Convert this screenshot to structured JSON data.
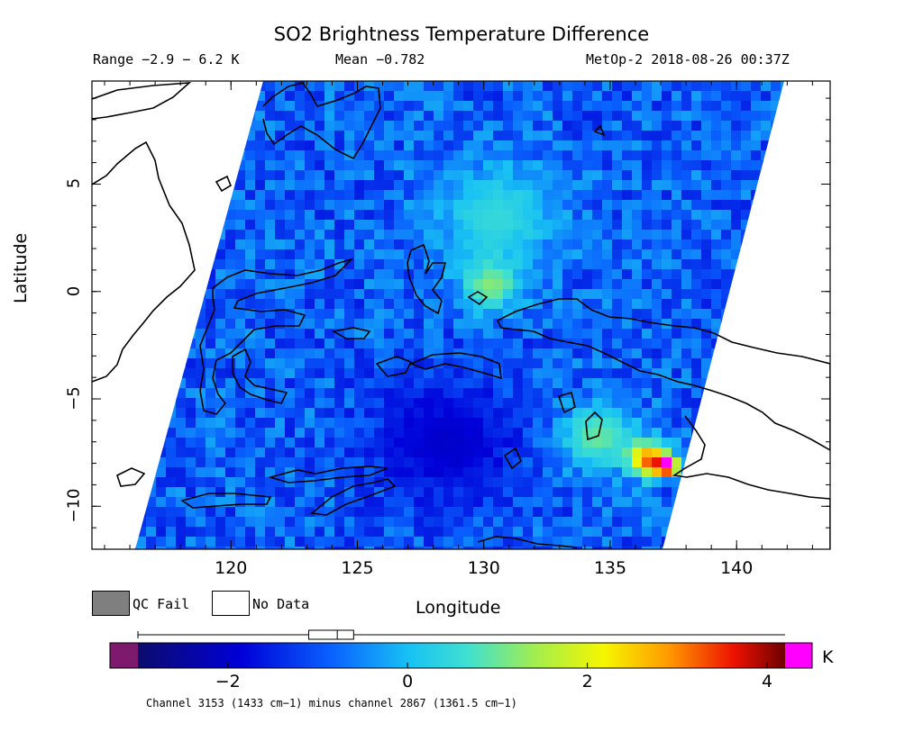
{
  "title": "SO2 Brightness Temperature Difference",
  "range_text": "Range −2.9 − 6.2 K",
  "mean_text": "Mean −0.782",
  "satellite_text": "MetOp-2 2018-08-26 00:37Z",
  "axes": {
    "xlabel": "Longitude",
    "ylabel": "Latitude",
    "lon_range": [
      114.5,
      143.7
    ],
    "lat_range": [
      -12,
      9.8
    ],
    "lon_ticks": [
      "120",
      "125",
      "130",
      "135",
      "140"
    ],
    "lat_ticks": [
      "5",
      "0",
      "−5",
      "−10"
    ]
  },
  "legend": {
    "qc_fail": "QC Fail",
    "no_data": "No Data",
    "qc_color": "#7f7f7f",
    "nodata_color": "#ffffff"
  },
  "colorbar": {
    "label": "Channel 3153 (1433 cm−1) minus channel 2867 (1361.5 cm−1)",
    "unit": "K",
    "ticks": [
      "−2",
      "0",
      "2",
      "4"
    ],
    "range": [
      -3,
      4.2
    ],
    "under_color": "#7d1a6e",
    "over_color": "#ff00ff",
    "mean_value": -0.782,
    "box_range": [
      -1.1,
      -0.6
    ]
  },
  "swath": {
    "background_value": -0.9,
    "hotspots": [
      {
        "lon": 130.5,
        "lat": 3.5,
        "value": 0.5,
        "radius": 2.5
      },
      {
        "lon": 130.3,
        "lat": 0.3,
        "value": 1.2,
        "radius": 1.2
      },
      {
        "lon": 128.5,
        "lat": -7,
        "value": -2.0,
        "radius": 3.0
      },
      {
        "lon": 134.5,
        "lat": -6.8,
        "value": 1.0,
        "radius": 1.5
      },
      {
        "lon": 136.5,
        "lat": -7.8,
        "value": 3.2,
        "radius": 0.8
      },
      {
        "lon": 137.2,
        "lat": -8.1,
        "value": 4.6,
        "radius": 0.5
      }
    ]
  }
}
